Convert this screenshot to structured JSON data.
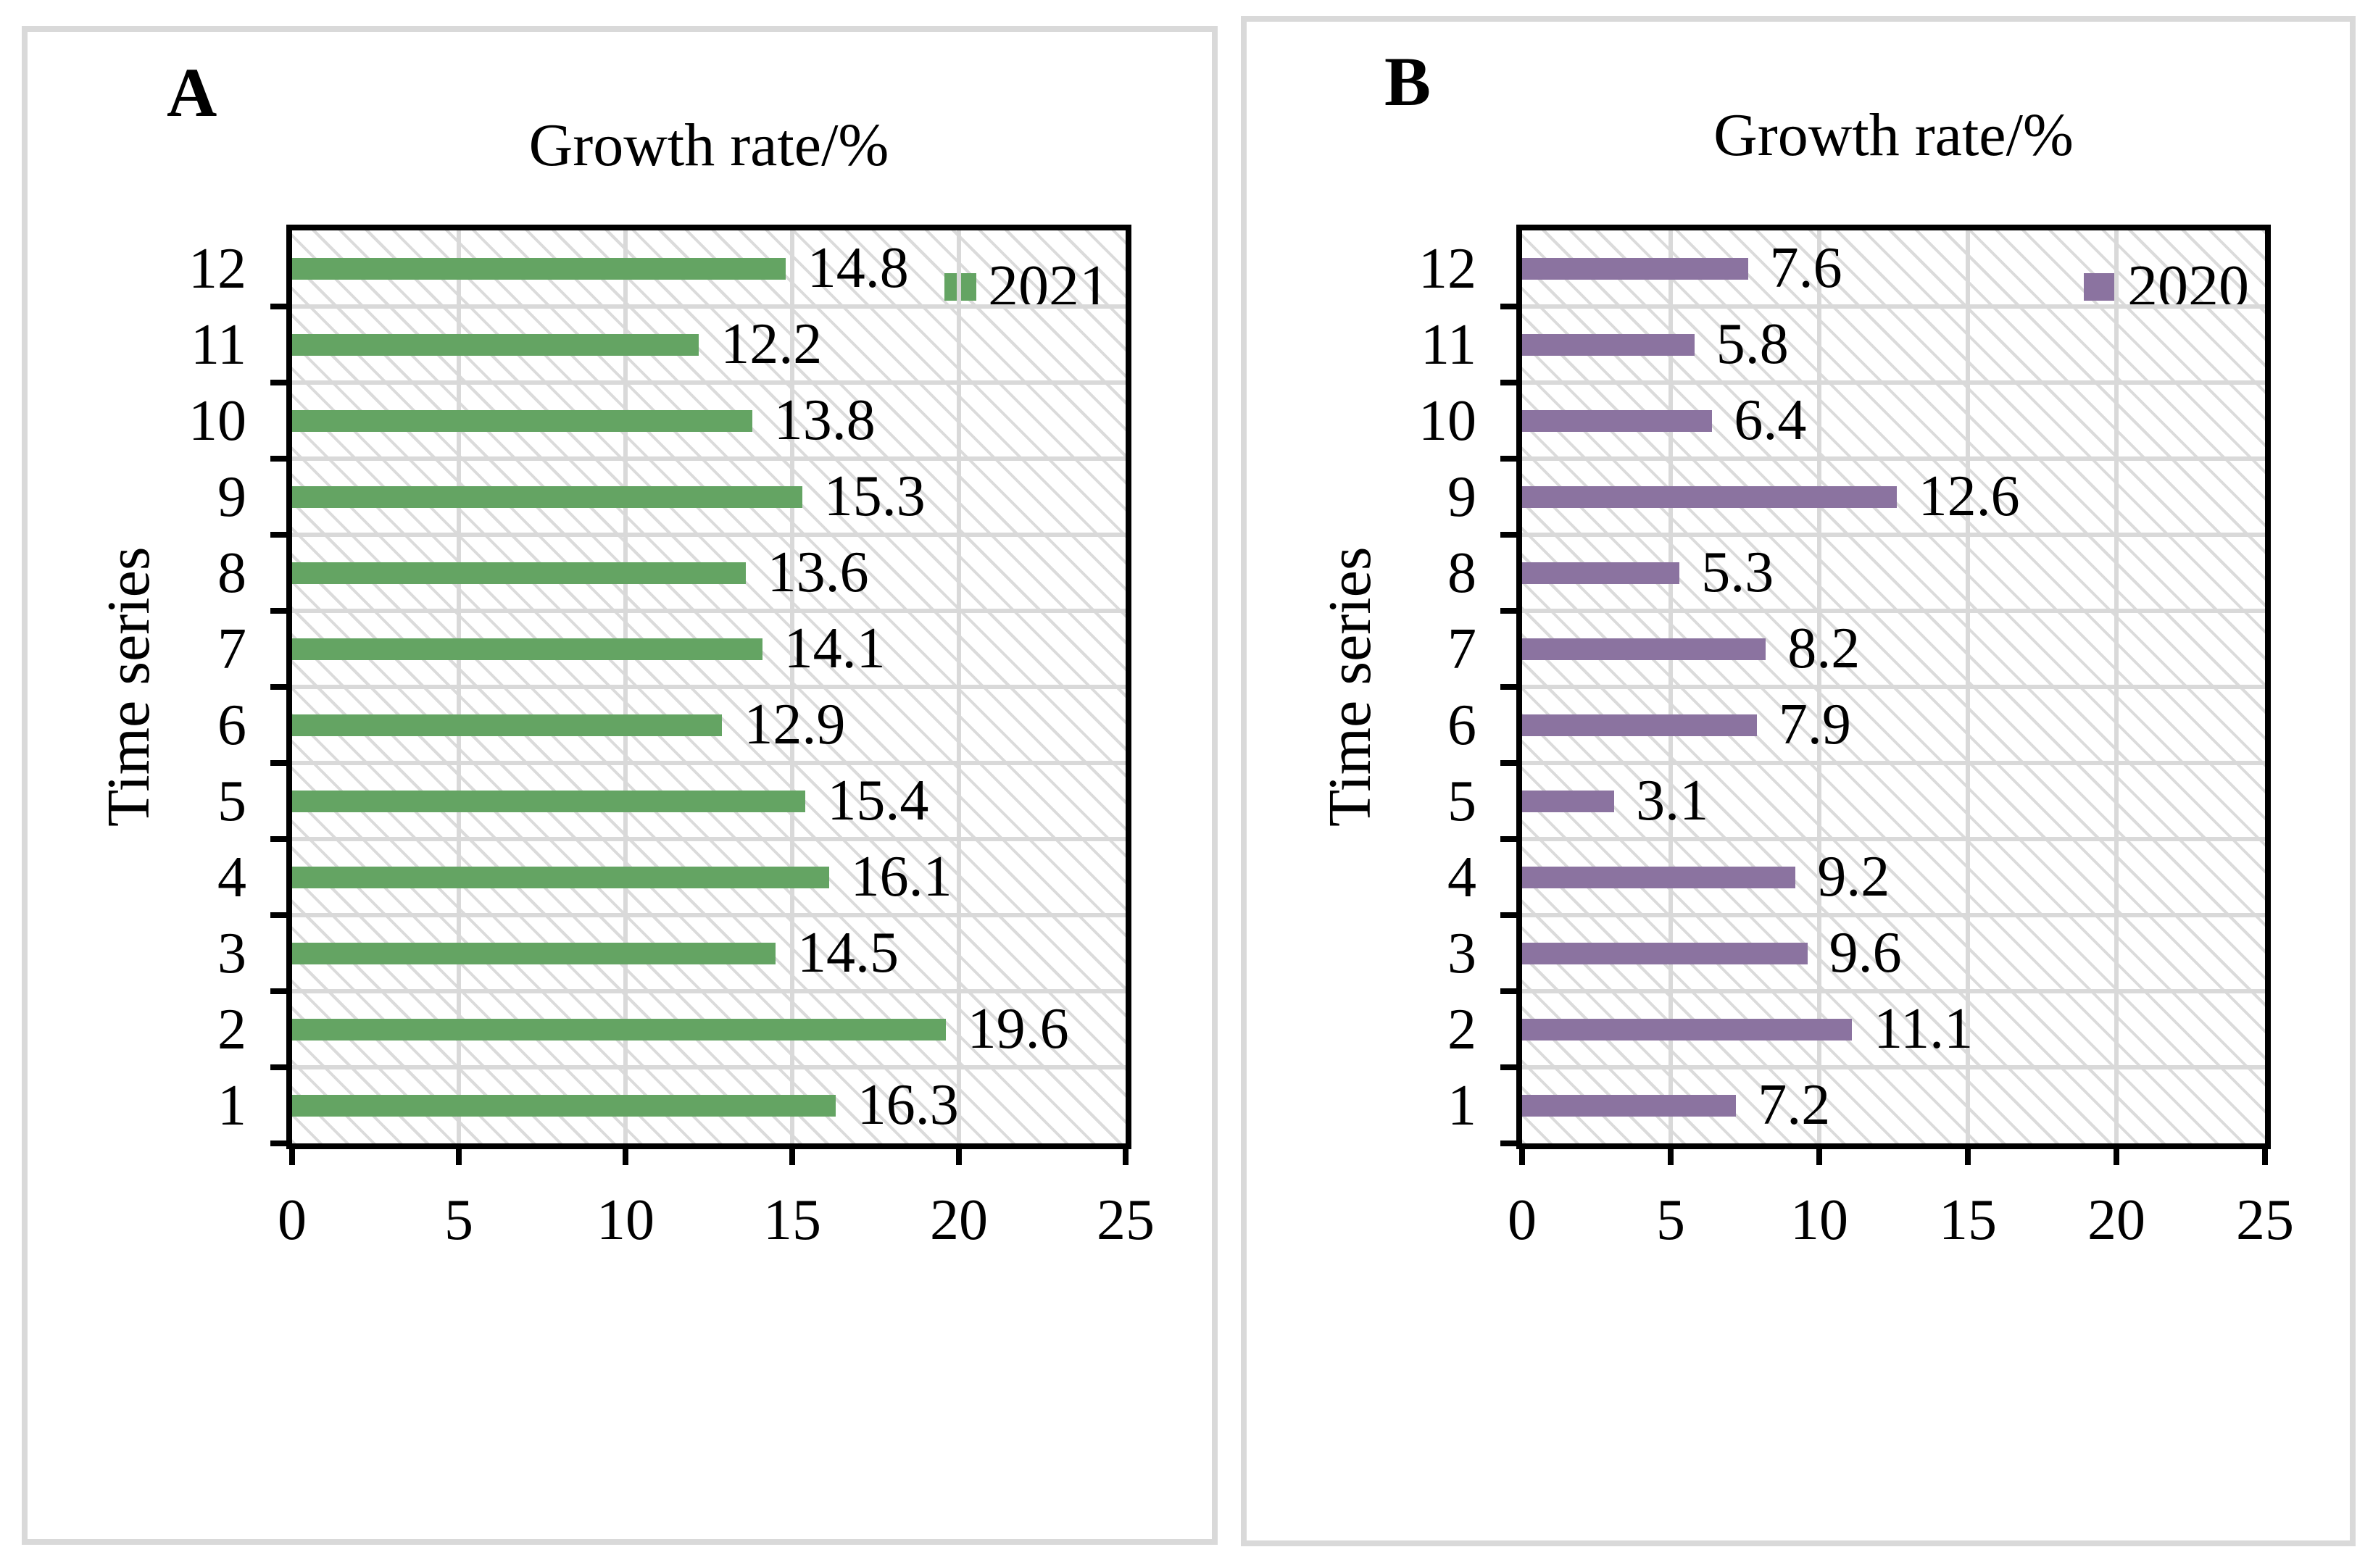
{
  "page": {
    "background": "#ffffff",
    "panel_border_color": "#d9d9d9",
    "axis_color": "#000000",
    "gridline_color": "#d9d9d9"
  },
  "chart_data": [
    {
      "type": "bar",
      "orientation": "horizontal",
      "panel_label": "A",
      "title": "Growth rate/%",
      "ylabel": "Time series",
      "categories": [
        "12",
        "11",
        "10",
        "9",
        "8",
        "7",
        "6",
        "5",
        "4",
        "3",
        "2",
        "1"
      ],
      "series": [
        {
          "name": "2021",
          "color": "#64A463",
          "values": [
            14.8,
            12.2,
            13.8,
            15.3,
            13.6,
            14.1,
            12.9,
            15.4,
            16.1,
            14.5,
            19.6,
            16.3
          ]
        }
      ],
      "xlim": [
        0,
        25
      ],
      "x_ticks": [
        0,
        5,
        10,
        15,
        20,
        25
      ],
      "grid": true,
      "data_labels": true,
      "legend_position": "top-right-inside"
    },
    {
      "type": "bar",
      "orientation": "horizontal",
      "panel_label": "B",
      "title": "Growth rate/%",
      "ylabel": "Time series",
      "categories": [
        "12",
        "11",
        "10",
        "9",
        "8",
        "7",
        "6",
        "5",
        "4",
        "3",
        "2",
        "1"
      ],
      "series": [
        {
          "name": "2020",
          "color": "#8B73A0",
          "values": [
            7.6,
            5.8,
            6.4,
            12.6,
            5.3,
            8.2,
            7.9,
            3.1,
            9.2,
            9.6,
            11.1,
            7.2
          ]
        }
      ],
      "xlim": [
        0,
        25
      ],
      "x_ticks": [
        0,
        5,
        10,
        15,
        20,
        25
      ],
      "grid": true,
      "data_labels": true,
      "legend_position": "top-right-inside"
    }
  ]
}
